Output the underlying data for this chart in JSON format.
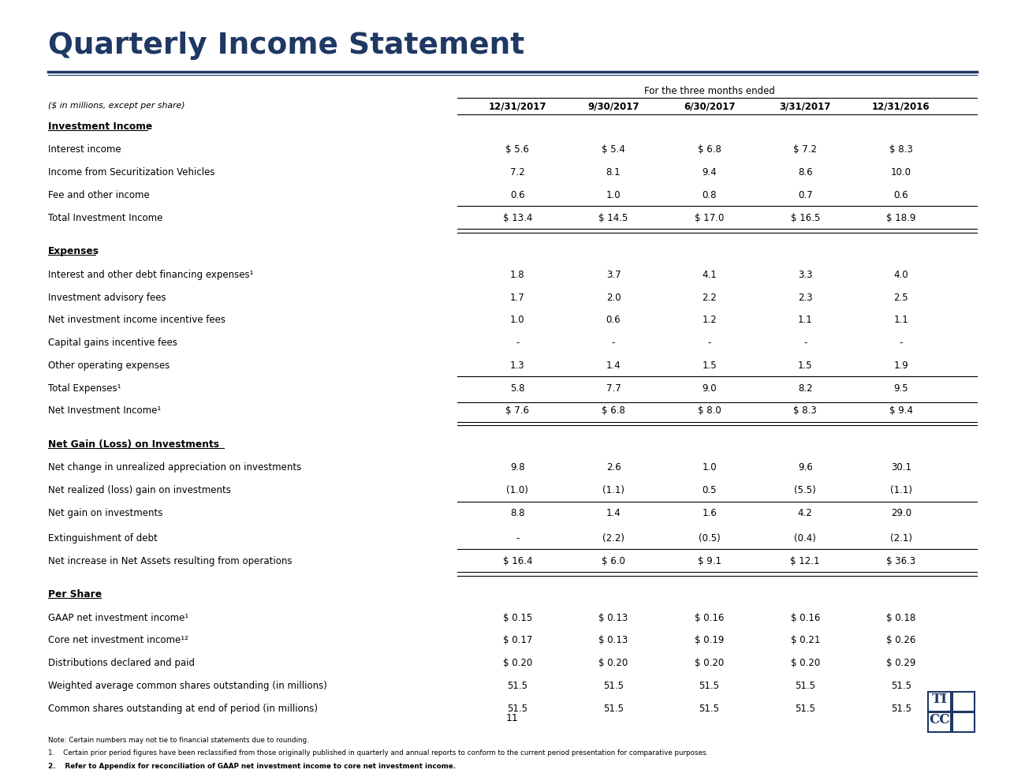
{
  "title": "Quarterly Income Statement",
  "subtitle": "For the three months ended",
  "unit_label": "($ in millions, except per share)",
  "columns": [
    "12/31/2017",
    "9/30/2017",
    "6/30/2017",
    "3/31/2017",
    "12/31/2016"
  ],
  "sections": [
    {
      "header": "Investment Income",
      "header_underline": true,
      "rows": [
        {
          "label": "Interest income",
          "values": [
            "$ 5.6",
            "$ 5.4",
            "$ 6.8",
            "$ 7.2",
            "$ 8.3"
          ],
          "bold": false,
          "top_border": false,
          "bottom_border": false
        },
        {
          "label": "Income from Securitization Vehicles",
          "values": [
            "7.2",
            "8.1",
            "9.4",
            "8.6",
            "10.0"
          ],
          "bold": false,
          "top_border": false,
          "bottom_border": false
        },
        {
          "label": "Fee and other income",
          "values": [
            "0.6",
            "1.0",
            "0.8",
            "0.7",
            "0.6"
          ],
          "bold": false,
          "top_border": false,
          "bottom_border": true
        },
        {
          "label": "Total Investment Income",
          "values": [
            "$ 13.4",
            "$ 14.5",
            "$ 17.0",
            "$ 16.5",
            "$ 18.9"
          ],
          "bold": false,
          "top_border": false,
          "bottom_border": true
        }
      ]
    },
    {
      "header": "Expenses",
      "header_underline": true,
      "rows": [
        {
          "label": "Interest and other debt financing expenses¹",
          "values": [
            "1.8",
            "3.7",
            "4.1",
            "3.3",
            "4.0"
          ],
          "bold": false,
          "top_border": false,
          "bottom_border": false
        },
        {
          "label": "Investment advisory fees",
          "values": [
            "1.7",
            "2.0",
            "2.2",
            "2.3",
            "2.5"
          ],
          "bold": false,
          "top_border": false,
          "bottom_border": false
        },
        {
          "label": "Net investment income incentive fees",
          "values": [
            "1.0",
            "0.6",
            "1.2",
            "1.1",
            "1.1"
          ],
          "bold": false,
          "top_border": false,
          "bottom_border": false
        },
        {
          "label": "Capital gains incentive fees",
          "values": [
            "-",
            "-",
            "-",
            "-",
            "-"
          ],
          "bold": false,
          "top_border": false,
          "bottom_border": false
        },
        {
          "label": "Other operating expenses",
          "values": [
            "1.3",
            "1.4",
            "1.5",
            "1.5",
            "1.9"
          ],
          "bold": false,
          "top_border": false,
          "bottom_border": true
        },
        {
          "label": "Total Expenses¹",
          "values": [
            "5.8",
            "7.7",
            "9.0",
            "8.2",
            "9.5"
          ],
          "bold": false,
          "top_border": false,
          "bottom_border": false
        },
        {
          "label": "Net Investment Income¹",
          "values": [
            "$ 7.6",
            "$ 6.8",
            "$ 8.0",
            "$ 8.3",
            "$ 9.4"
          ],
          "bold": false,
          "top_border": true,
          "bottom_border": true
        }
      ]
    },
    {
      "header": "Net Gain (Loss) on Investments",
      "header_underline": true,
      "rows": [
        {
          "label": "Net change in unrealized appreciation on investments",
          "values": [
            "9.8",
            "2.6",
            "1.0",
            "9.6",
            "30.1"
          ],
          "bold": false,
          "top_border": false,
          "bottom_border": false
        },
        {
          "label": "Net realized (loss) gain on investments",
          "values": [
            "(1.0)",
            "(1.1)",
            "0.5",
            "(5.5)",
            "(1.1)"
          ],
          "bold": false,
          "top_border": false,
          "bottom_border": true
        },
        {
          "label": "Net gain on investments",
          "values": [
            "8.8",
            "1.4",
            "1.6",
            "4.2",
            "29.0"
          ],
          "bold": false,
          "top_border": false,
          "bottom_border": false
        }
      ]
    },
    {
      "header": null,
      "header_underline": false,
      "rows": [
        {
          "label": "Extinguishment of debt",
          "values": [
            "-",
            "(2.2)",
            "(0.5)",
            "(0.4)",
            "(2.1)"
          ],
          "bold": false,
          "top_border": false,
          "bottom_border": true
        },
        {
          "label": "Net increase in Net Assets resulting from operations",
          "values": [
            "$ 16.4",
            "$ 6.0",
            "$ 9.1",
            "$ 12.1",
            "$ 36.3"
          ],
          "bold": false,
          "top_border": false,
          "bottom_border": true
        }
      ]
    },
    {
      "header": "Per Share",
      "header_underline": true,
      "rows": [
        {
          "label": "GAAP net investment income¹",
          "values": [
            "$ 0.15",
            "$ 0.13",
            "$ 0.16",
            "$ 0.16",
            "$ 0.18"
          ],
          "bold": false,
          "top_border": false,
          "bottom_border": false
        },
        {
          "label": "Core net investment income¹²",
          "values": [
            "$ 0.17",
            "$ 0.13",
            "$ 0.19",
            "$ 0.21",
            "$ 0.26"
          ],
          "bold": false,
          "top_border": false,
          "bottom_border": false
        },
        {
          "label": "Distributions declared and paid",
          "values": [
            "$ 0.20",
            "$ 0.20",
            "$ 0.20",
            "$ 0.20",
            "$ 0.29"
          ],
          "bold": false,
          "top_border": false,
          "bottom_border": false
        },
        {
          "label": "Weighted average common shares outstanding (in millions)",
          "values": [
            "51.5",
            "51.5",
            "51.5",
            "51.5",
            "51.5"
          ],
          "bold": false,
          "top_border": false,
          "bottom_border": false
        },
        {
          "label": "Common shares outstanding at end of period (in millions)",
          "values": [
            "51.5",
            "51.5",
            "51.5",
            "51.5",
            "51.5"
          ],
          "bold": false,
          "top_border": false,
          "bottom_border": false
        }
      ]
    }
  ],
  "footnotes": [
    "Note: Certain numbers may not tie to financial statements due to rounding.",
    "1.    Certain prior period figures have been reclassified from those originally published in quarterly and annual reports to conform to the current period presentation for comparative purposes.",
    "2.    Refer to Appendix for reconciliation of GAAP net investment income to core net investment income."
  ],
  "page_number": "11",
  "bg_color": "#ffffff",
  "title_color": "#1F3864",
  "text_color": "#000000",
  "line_color": "#1F3864"
}
